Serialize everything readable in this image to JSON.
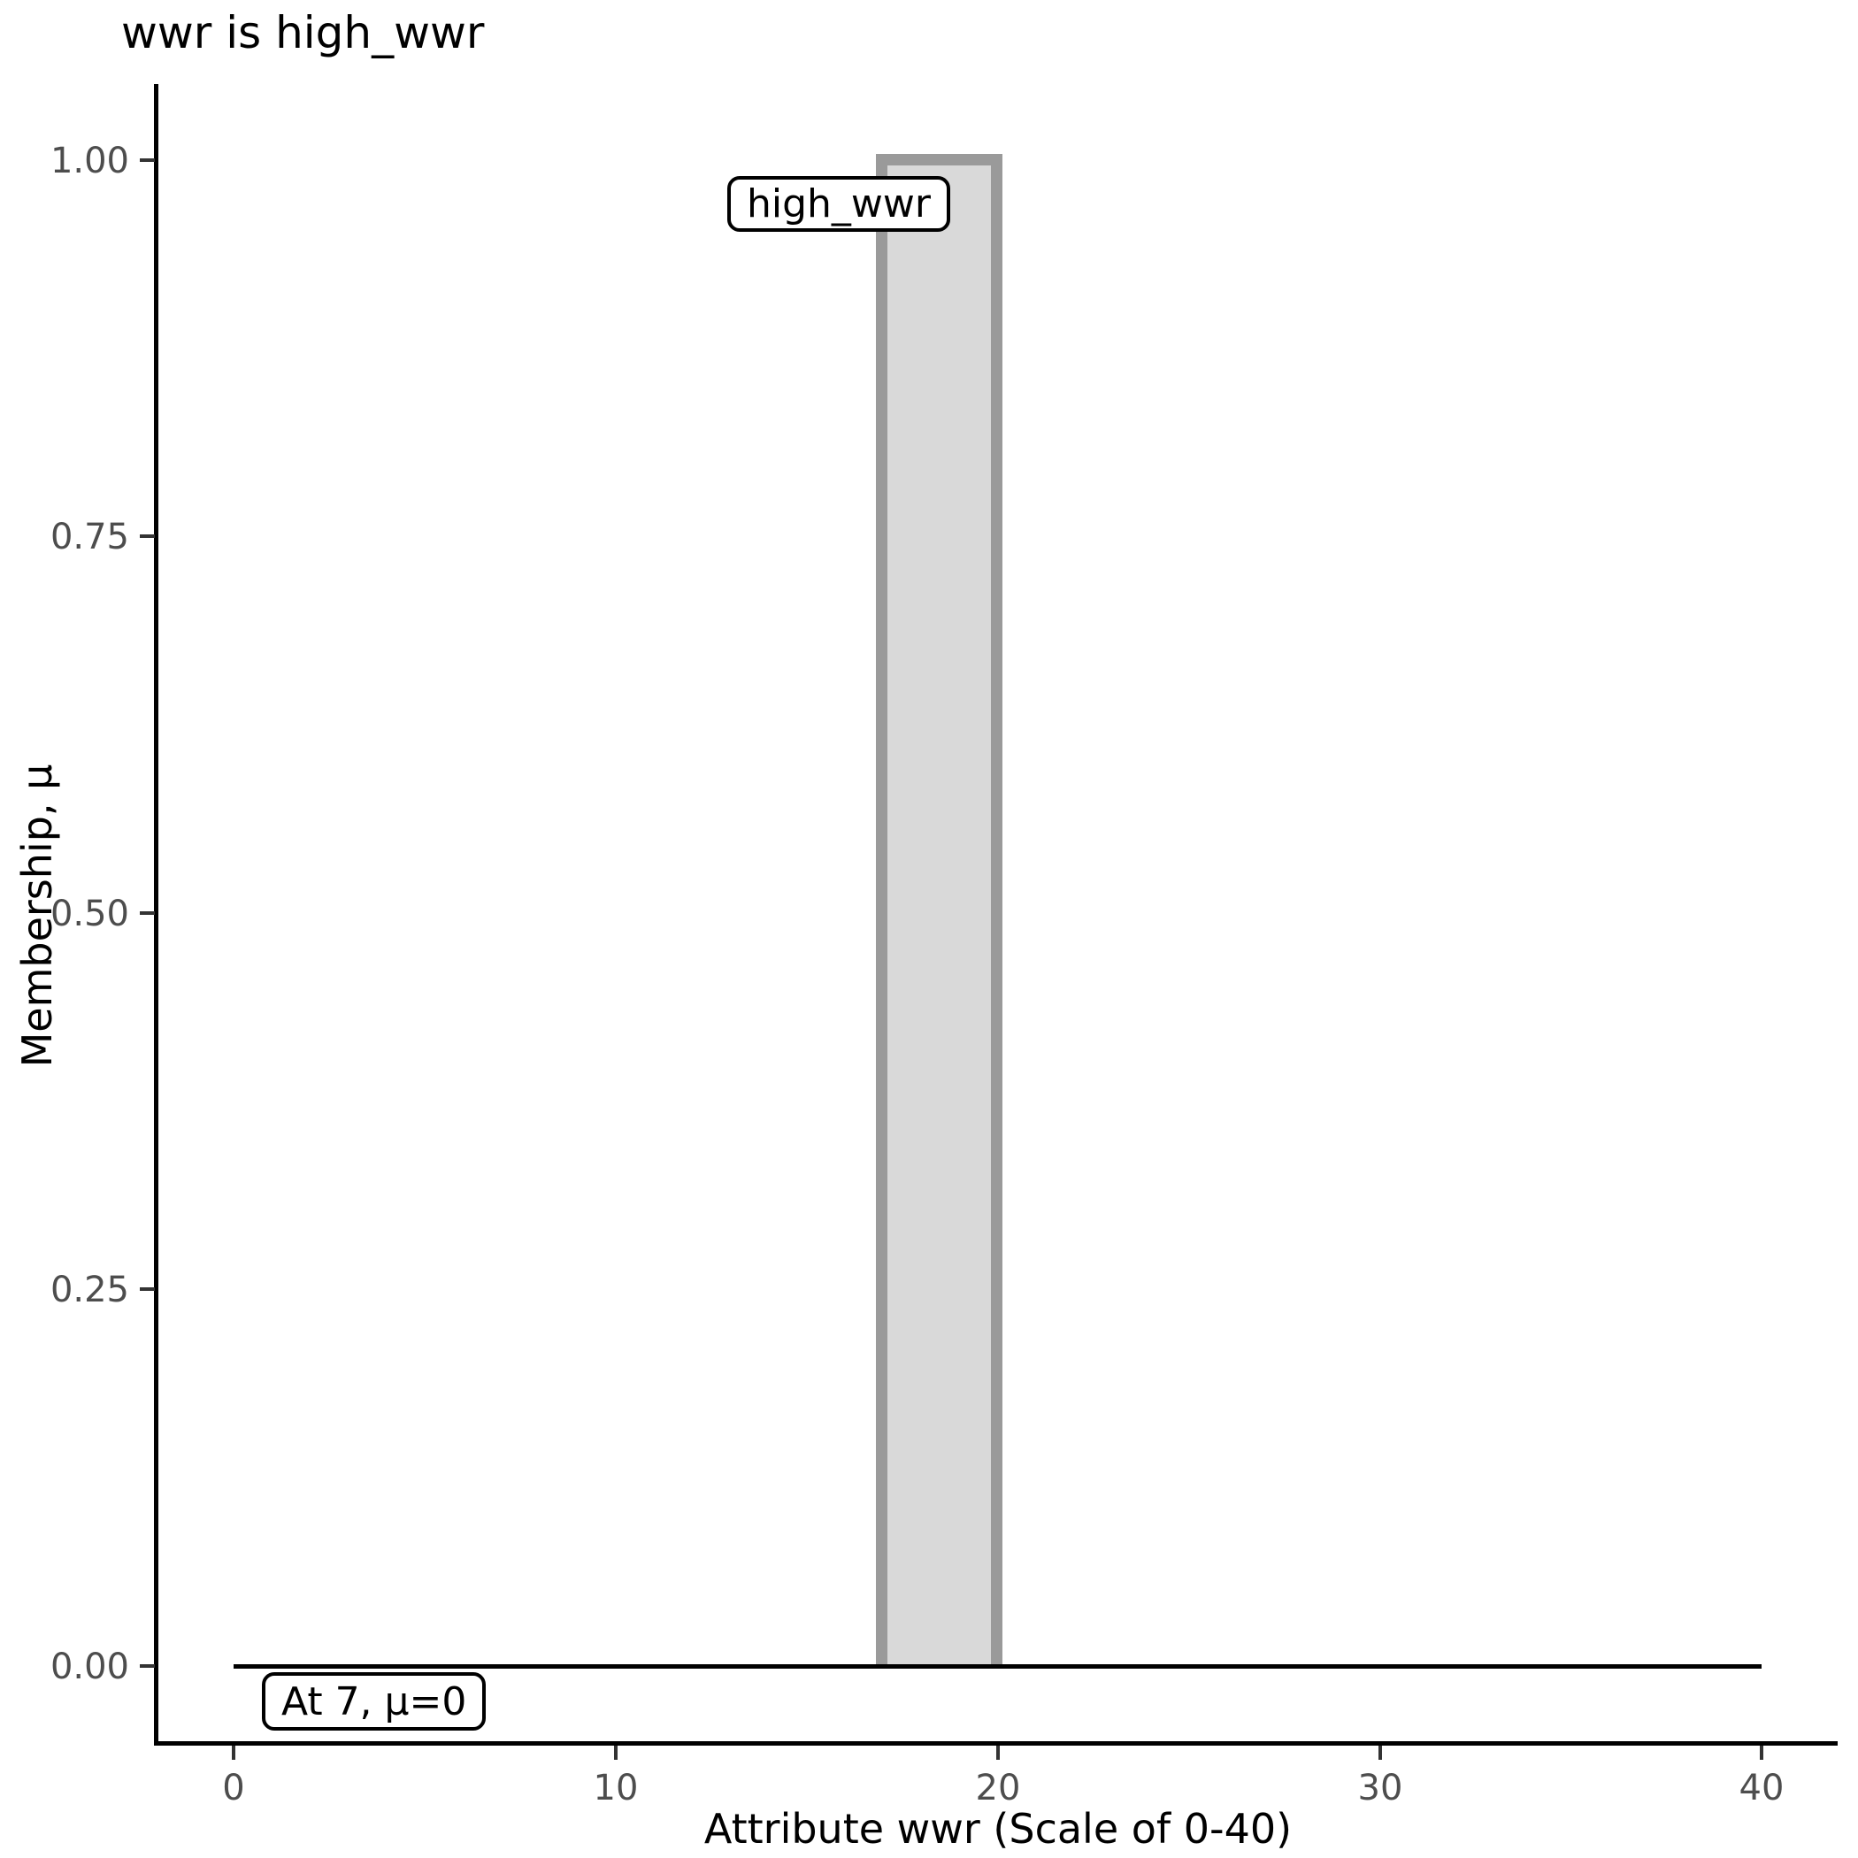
{
  "title": "wwr is high_wwr",
  "chart_data": {
    "type": "area",
    "title": "wwr is high_wwr",
    "xlabel": "Attribute wwr (Scale of 0-40)",
    "ylabel": "Membership, μ",
    "xlim": [
      0,
      40
    ],
    "ylim": [
      0,
      1
    ],
    "grid": false,
    "legend_position": "none",
    "x_ticks": [
      "0",
      "10",
      "20",
      "30",
      "40"
    ],
    "y_ticks": [
      "0.00",
      "0.25",
      "0.50",
      "0.75",
      "1.00"
    ],
    "membership_function": {
      "set_name": "high_wwr",
      "shape": "rectangle",
      "x_start": 17,
      "x_end": 20,
      "mu_inside": 1.0,
      "mu_outside": 0.0,
      "baseline_points": [
        [
          0,
          0
        ],
        [
          40,
          0
        ]
      ],
      "evaluated_at": 7,
      "evaluated_mu": 0
    },
    "annotations": [
      {
        "text": "high_wwr",
        "x": 15.5,
        "y": 0.95
      },
      {
        "text": "At 7, μ=0",
        "x": 3.2,
        "y": -0.03
      }
    ],
    "colors": {
      "bar_fill": "#d9d9d9",
      "bar_border": "#9a9a9a",
      "axis_text": "#4d4d4d",
      "axis_line": "#000000",
      "baseline": "#000000",
      "annotation_bg": "#ffffff",
      "annotation_border": "#000000"
    }
  }
}
